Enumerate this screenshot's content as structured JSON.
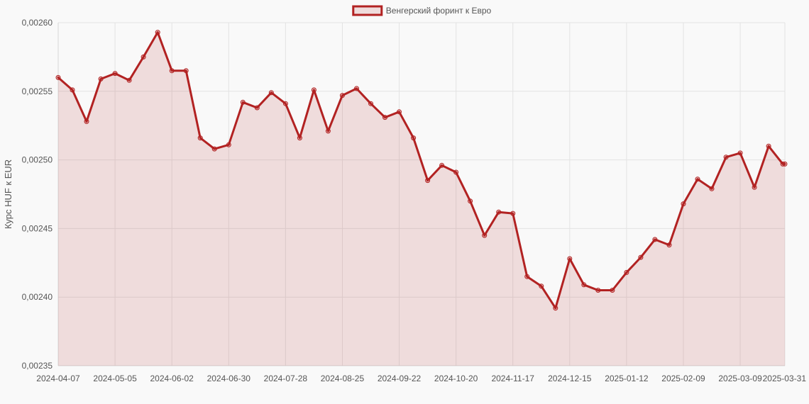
{
  "chart_data": {
    "type": "line",
    "ylabel": "Курс HUF к EUR",
    "xlabel": "",
    "ylim": [
      0.00235,
      0.0026
    ],
    "y_ticks": [
      "0,00235",
      "0,00240",
      "0,00245",
      "0,00250",
      "0,00255",
      "0,00260"
    ],
    "x_tick_labels": [
      "2024-04-07",
      "2024-05-05",
      "2024-06-02",
      "2024-06-30",
      "2024-07-28",
      "2024-08-25",
      "2024-09-22",
      "2024-10-20",
      "2024-11-17",
      "2024-12-15",
      "2025-01-12",
      "2025-02-09",
      "2025-03-09",
      "2025-03-31"
    ],
    "legend": {
      "position": "top-center"
    },
    "grid": true,
    "series": [
      {
        "name": "Венгерский форинт к Евро",
        "color": "#b22222",
        "fill": "rgba(178,34,34,0.13)",
        "x": [
          "2024-04-07",
          "2024-04-14",
          "2024-04-21",
          "2024-04-28",
          "2024-05-05",
          "2024-05-12",
          "2024-05-19",
          "2024-05-26",
          "2024-06-02",
          "2024-06-09",
          "2024-06-16",
          "2024-06-23",
          "2024-06-30",
          "2024-07-07",
          "2024-07-14",
          "2024-07-21",
          "2024-07-28",
          "2024-08-04",
          "2024-08-11",
          "2024-08-18",
          "2024-08-25",
          "2024-09-01",
          "2024-09-08",
          "2024-09-15",
          "2024-09-22",
          "2024-09-29",
          "2024-10-06",
          "2024-10-13",
          "2024-10-20",
          "2024-10-27",
          "2024-11-03",
          "2024-11-10",
          "2024-11-17",
          "2024-11-24",
          "2024-12-01",
          "2024-12-08",
          "2024-12-15",
          "2024-12-22",
          "2024-12-29",
          "2025-01-05",
          "2025-01-12",
          "2025-01-19",
          "2025-01-26",
          "2025-02-02",
          "2025-02-09",
          "2025-02-16",
          "2025-02-23",
          "2025-03-02",
          "2025-03-09",
          "2025-03-16",
          "2025-03-23",
          "2025-03-30",
          "2025-03-31"
        ],
        "values": [
          0.00256,
          0.002551,
          0.002528,
          0.002559,
          0.002563,
          0.002558,
          0.002575,
          0.002593,
          0.002565,
          0.002565,
          0.002516,
          0.002508,
          0.002511,
          0.002542,
          0.002538,
          0.002549,
          0.002541,
          0.002516,
          0.002551,
          0.002521,
          0.002547,
          0.002552,
          0.002541,
          0.002531,
          0.002535,
          0.002516,
          0.002485,
          0.002496,
          0.002491,
          0.00247,
          0.002445,
          0.002462,
          0.002461,
          0.002415,
          0.002408,
          0.002392,
          0.002428,
          0.002409,
          0.002405,
          0.002405,
          0.002418,
          0.002429,
          0.002442,
          0.002438,
          0.002468,
          0.002486,
          0.002479,
          0.002502,
          0.002505,
          0.00248,
          0.00251,
          0.002497,
          0.002497
        ]
      }
    ]
  }
}
